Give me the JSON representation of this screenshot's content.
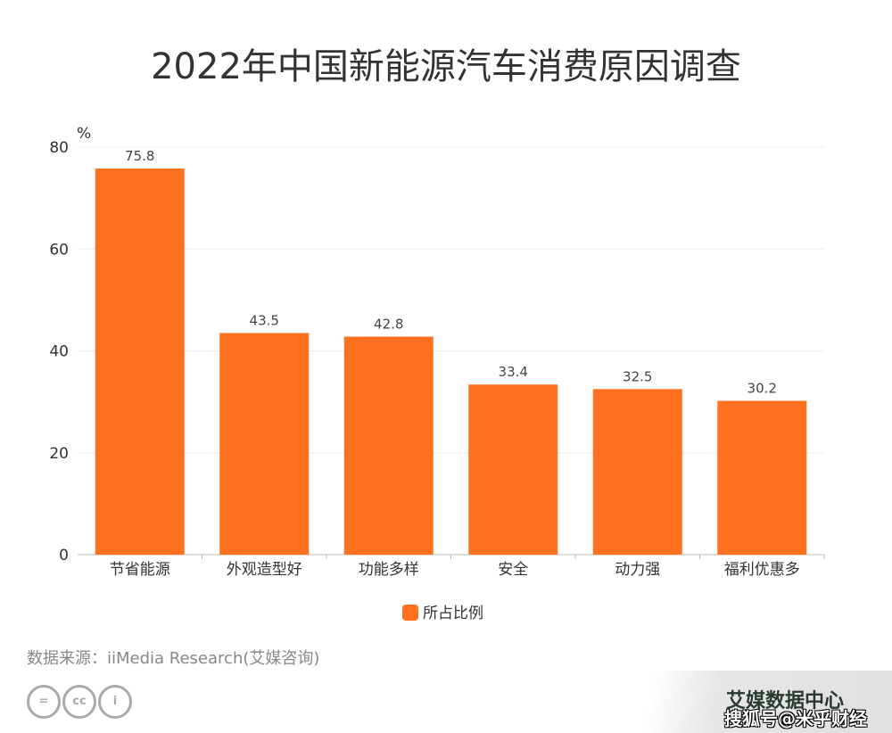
{
  "chart_data": {
    "type": "bar",
    "title": "2022年中国新能源汽车消费原因调查",
    "categories": [
      "节省能源",
      "外观造型好",
      "功能多样",
      "安全",
      "动力强",
      "福利优惠多"
    ],
    "series": [
      {
        "name": "所占比例",
        "values": [
          75.8,
          43.5,
          42.8,
          33.4,
          32.5,
          30.2
        ],
        "color": "#FF711E"
      }
    ],
    "ylabel": "%",
    "ylim": [
      0,
      80
    ],
    "yticks": [
      0,
      20,
      40,
      60,
      80
    ],
    "grid": true,
    "legend": "bottom"
  },
  "source": "数据来源：iiMedia Research(艾媒咨询)",
  "license_icons": [
    "equals-icon",
    "cc-icon",
    "person-icon"
  ],
  "license_labels": [
    "=",
    "cc",
    "i"
  ],
  "watermark": {
    "brand": "艾媒数据中心",
    "sohu": "搜狐号@米乎财经"
  }
}
